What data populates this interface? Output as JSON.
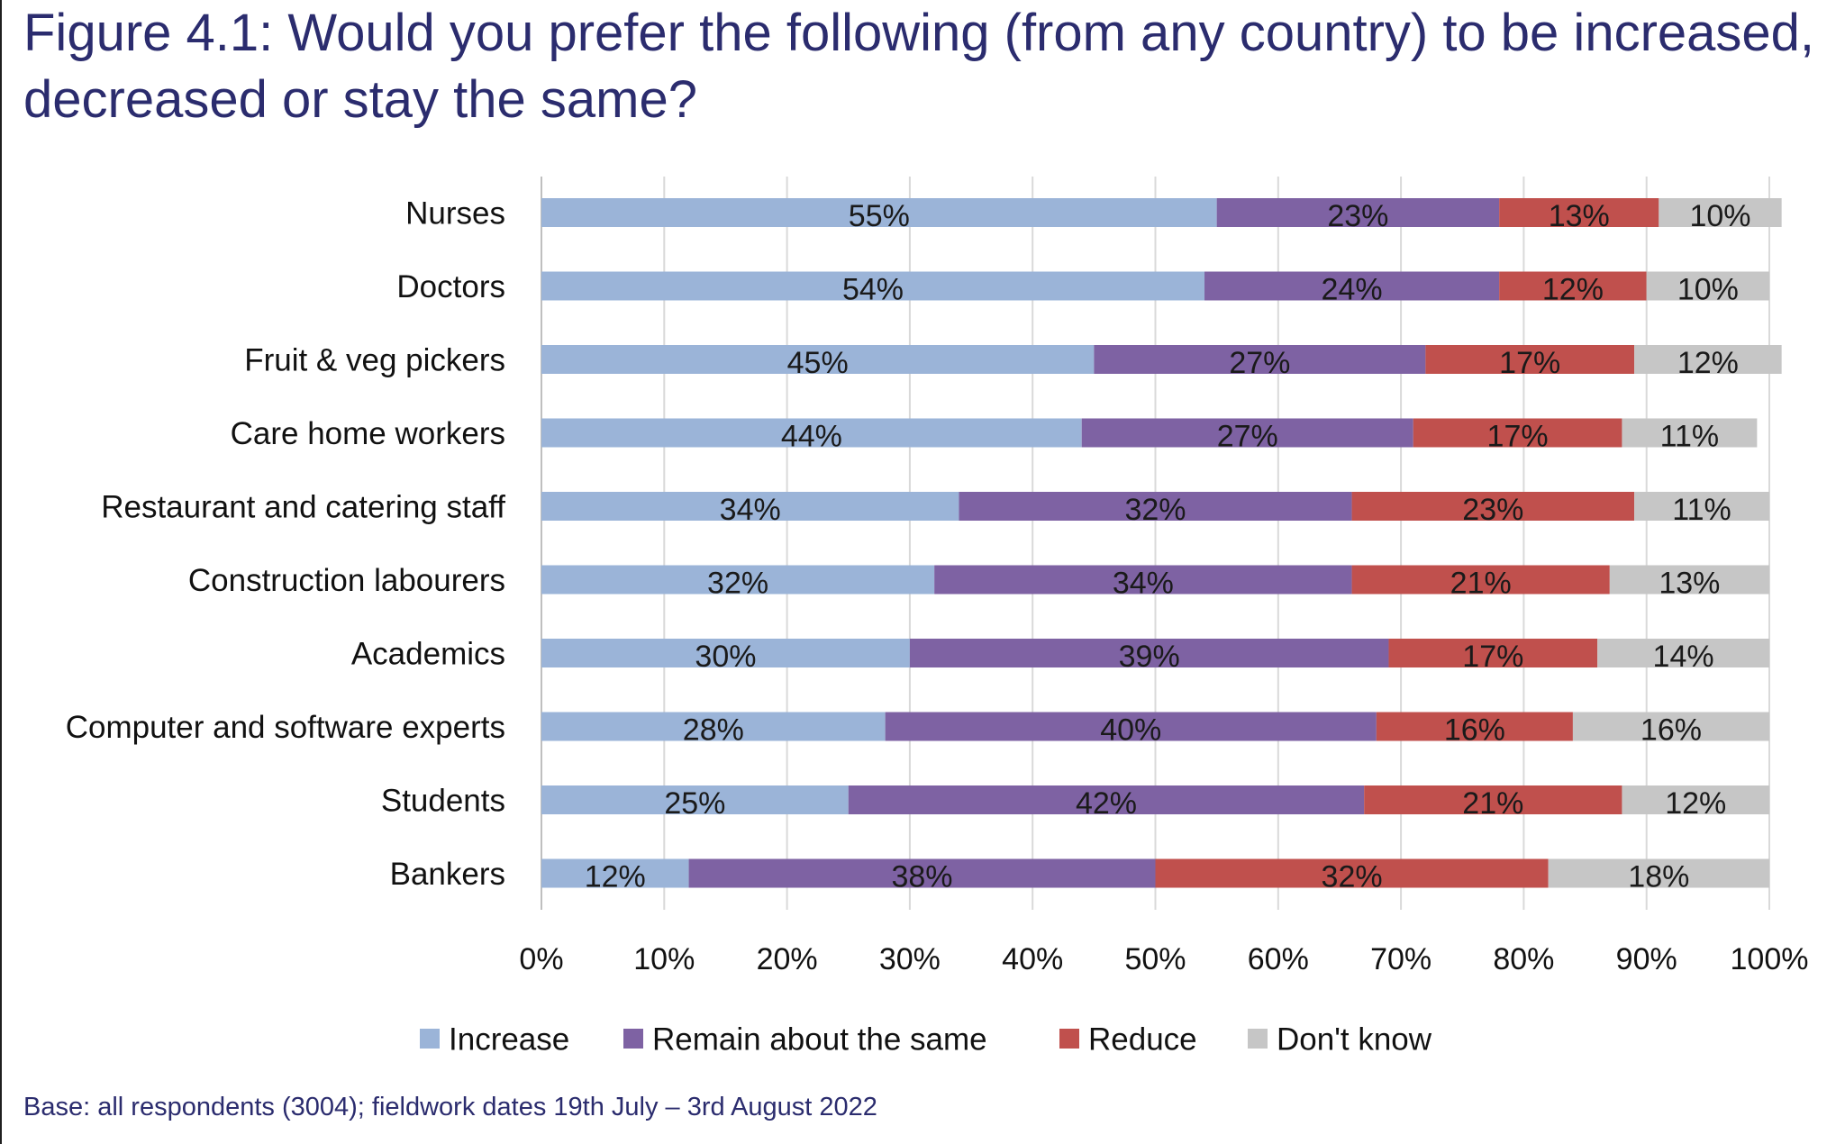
{
  "title": "Figure 4.1: Would you prefer the following (from any country) to be increased, decreased or stay the same?",
  "footnote": "Base: all respondents (3004); fieldwork dates 19th July – 3rd August 2022",
  "chart_data": {
    "type": "bar",
    "orientation": "horizontal",
    "stacked": true,
    "title": "Figure 4.1: Would you prefer the following (from any country) to be increased, decreased or stay the same?",
    "xlabel": "",
    "ylabel": "",
    "xlim": [
      0,
      100
    ],
    "x_ticks": [
      "0%",
      "10%",
      "20%",
      "30%",
      "40%",
      "50%",
      "60%",
      "70%",
      "80%",
      "90%",
      "100%"
    ],
    "grid": "vertical",
    "legend": "bottom",
    "categories": [
      "Nurses",
      "Doctors",
      "Fruit & veg pickers",
      "Care home workers",
      "Restaurant and catering staff",
      "Construction labourers",
      "Academics",
      "Computer and software experts",
      "Students",
      "Bankers"
    ],
    "series": [
      {
        "name": "Increase",
        "color": "#9bb4d8",
        "values": [
          55,
          54,
          45,
          44,
          34,
          32,
          30,
          28,
          25,
          12
        ]
      },
      {
        "name": "Remain about the same",
        "color": "#7e62a3",
        "values": [
          23,
          24,
          27,
          27,
          32,
          34,
          39,
          40,
          42,
          38
        ]
      },
      {
        "name": "Reduce",
        "color": "#c0504d",
        "values": [
          13,
          12,
          17,
          17,
          23,
          21,
          17,
          16,
          21,
          32
        ]
      },
      {
        "name": "Don't know",
        "color": "#c6c6c6",
        "values": [
          10,
          10,
          12,
          11,
          11,
          13,
          14,
          16,
          12,
          18
        ]
      }
    ]
  }
}
